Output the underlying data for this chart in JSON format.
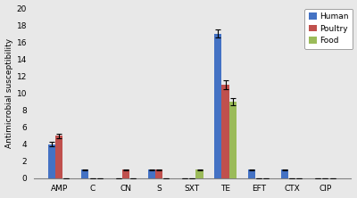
{
  "categories": [
    "AMP",
    "C",
    "CN",
    "S",
    "SXT",
    "TE",
    "EFT",
    "CTX",
    "CIP"
  ],
  "human": [
    4.0,
    1.0,
    0.0,
    1.0,
    0.0,
    17.0,
    1.0,
    1.0,
    0.0
  ],
  "poultry": [
    5.0,
    0.0,
    1.0,
    1.0,
    0.0,
    11.0,
    0.0,
    0.0,
    0.0
  ],
  "food": [
    0.0,
    0.0,
    0.0,
    0.0,
    1.0,
    9.0,
    0.0,
    0.0,
    0.0
  ],
  "human_err": [
    0.25,
    0.08,
    0.0,
    0.08,
    0.0,
    0.5,
    0.08,
    0.08,
    0.0
  ],
  "poultry_err": [
    0.25,
    0.0,
    0.08,
    0.08,
    0.0,
    0.5,
    0.0,
    0.0,
    0.0
  ],
  "food_err": [
    0.0,
    0.0,
    0.0,
    0.0,
    0.08,
    0.4,
    0.0,
    0.0,
    0.0
  ],
  "color_human": "#4472C4",
  "color_poultry": "#C0504D",
  "color_food": "#9BBB59",
  "bg_color": "#E8E8E8",
  "ylabel": "Antimicrobial susceptibility",
  "ylim": [
    0,
    20
  ],
  "yticks": [
    0,
    2,
    4,
    6,
    8,
    10,
    12,
    14,
    16,
    18,
    20
  ],
  "legend_labels": [
    "Human",
    "Poultry",
    "Food"
  ],
  "bar_width": 0.22,
  "figsize": [
    4.0,
    2.22
  ],
  "dpi": 100
}
